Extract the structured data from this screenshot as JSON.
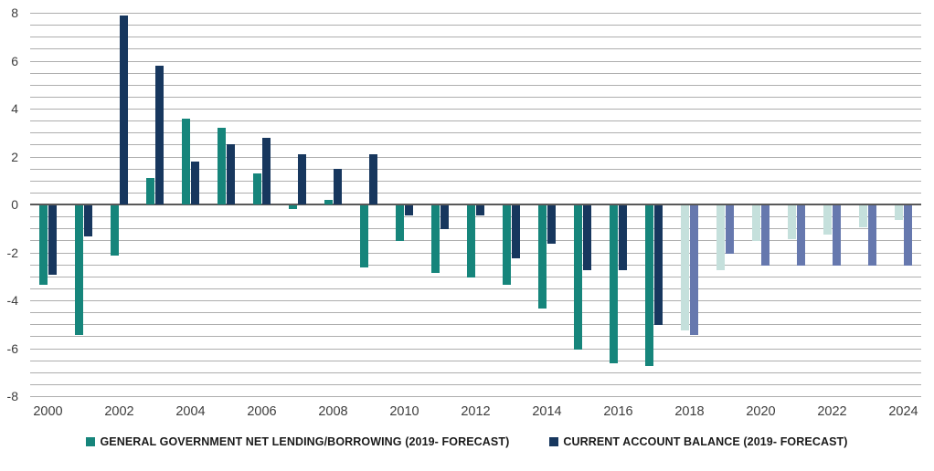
{
  "legend": {
    "items": [
      {
        "label": "GENERAL GOVERNMENT NET LENDING/BORROWING (2019- FORECAST)",
        "swatch_color": "#16857b"
      },
      {
        "label": "CURRENT ACCOUNT BALANCE (2019- FORECAST)",
        "swatch_color": "#17375e"
      }
    ]
  },
  "chart_data": {
    "type": "bar",
    "title": "",
    "xlabel": "",
    "ylabel": "",
    "categories": [
      2000,
      2001,
      2002,
      2003,
      2004,
      2005,
      2006,
      2007,
      2008,
      2009,
      2010,
      2011,
      2012,
      2013,
      2014,
      2015,
      2016,
      2017,
      2018,
      2019,
      2020,
      2021,
      2022,
      2023,
      2024
    ],
    "series": [
      {
        "name": "GENERAL GOVERNMENT NET LENDING/BORROWING (2019- FORECAST)",
        "color": "#16857b",
        "forecast_color": "#c5e0dc",
        "values": [
          -3.3,
          -5.4,
          -2.1,
          1.1,
          3.6,
          3.2,
          1.3,
          -0.15,
          0.2,
          -2.6,
          -1.5,
          -2.8,
          -3.0,
          -3.3,
          -4.3,
          -6.0,
          -6.6,
          -6.7,
          -5.2,
          -2.7,
          -1.5,
          -1.4,
          -1.2,
          -0.9,
          -0.6
        ]
      },
      {
        "name": "CURRENT ACCOUNT BALANCE (2019- FORECAST)",
        "color": "#17375e",
        "forecast_color": "#6678ae",
        "values": [
          -2.9,
          -1.3,
          7.9,
          5.8,
          1.8,
          2.5,
          2.8,
          2.1,
          1.5,
          2.1,
          -0.4,
          -1.0,
          -0.4,
          -2.2,
          -1.6,
          -2.7,
          -2.7,
          -5.0,
          -5.4,
          -2.0,
          -2.5,
          -2.5,
          -2.5,
          -2.5,
          -2.5
        ]
      }
    ],
    "forecast_start_year": 2018,
    "ylim": [
      -8,
      8
    ],
    "ytick_step": 2,
    "grid_step": 0.5,
    "xtick_step": 2,
    "grid": "on",
    "legend_position": "bottom",
    "gridline_color": "#aeaeae",
    "zero_line_color": "#595959",
    "tick_label_color": "#3d3d3d"
  }
}
